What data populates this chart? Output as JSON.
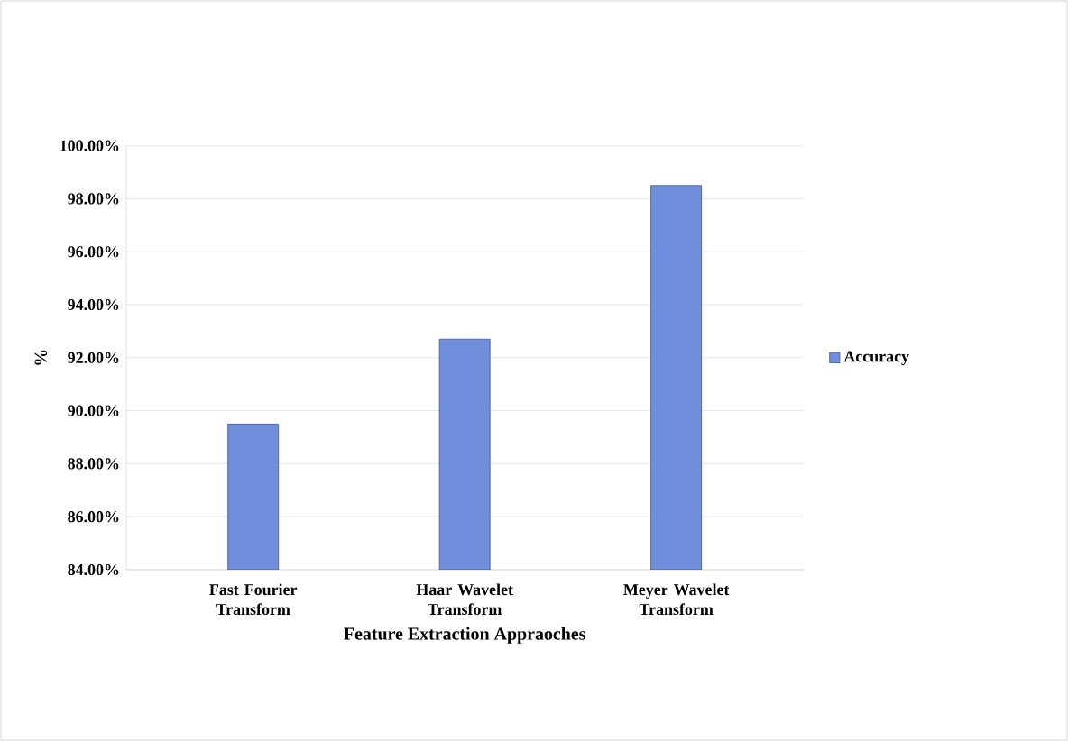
{
  "chart_data": {
    "type": "bar",
    "xlabel": "Feature Extraction Appraoches",
    "ylabel": "%",
    "categories": [
      "Fast Fourier Transform",
      "Haar Wavelet Transform",
      "Meyer Wavelet Transform"
    ],
    "series": [
      {
        "name": "Accuracy",
        "color": "#6f8fdc",
        "values": [
          89.5,
          92.7,
          98.5
        ]
      }
    ],
    "ylim": [
      84,
      100
    ],
    "yticks": [
      {
        "value": 84,
        "label": "84.00%"
      },
      {
        "value": 86,
        "label": "86.00%"
      },
      {
        "value": 88,
        "label": "88.00%"
      },
      {
        "value": 90,
        "label": "90.00%"
      },
      {
        "value": 92,
        "label": "92.00%"
      },
      {
        "value": 94,
        "label": "94.00%"
      },
      {
        "value": 96,
        "label": "96.00%"
      },
      {
        "value": 98,
        "label": "98.00%"
      },
      {
        "value": 100,
        "label": "100.00%"
      }
    ],
    "grid": "y",
    "legend": "right"
  }
}
